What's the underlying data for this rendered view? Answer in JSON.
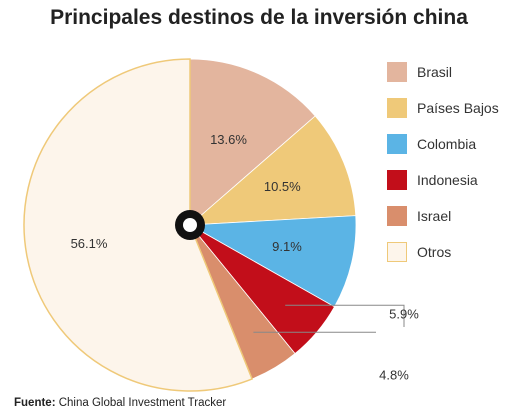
{
  "chart_data": {
    "type": "pie",
    "title": "Principales destinos de la inversión china",
    "legend_position": "right",
    "slices": [
      {
        "label": "Brasil",
        "value": 13.6,
        "value_label": "13.6%",
        "color": "#E3B59E"
      },
      {
        "label": "Países Bajos",
        "value": 10.5,
        "value_label": "10.5%",
        "color": "#EFC979"
      },
      {
        "label": "Colombia",
        "value": 9.1,
        "value_label": "9.1%",
        "color": "#5BB4E5"
      },
      {
        "label": "Indonesia",
        "value": 5.9,
        "value_label": "5.9%",
        "color": "#C20E1A"
      },
      {
        "label": "Israel",
        "value": 4.8,
        "value_label": "4.8%",
        "color": "#D98E6C"
      },
      {
        "label": "Otros",
        "value": 56.1,
        "value_label": "56.1%",
        "color": "#FDF5EB",
        "border_color": "#EFC979"
      }
    ]
  },
  "source": {
    "label": "Fuente:",
    "text": "China Global Investment Tracker"
  }
}
